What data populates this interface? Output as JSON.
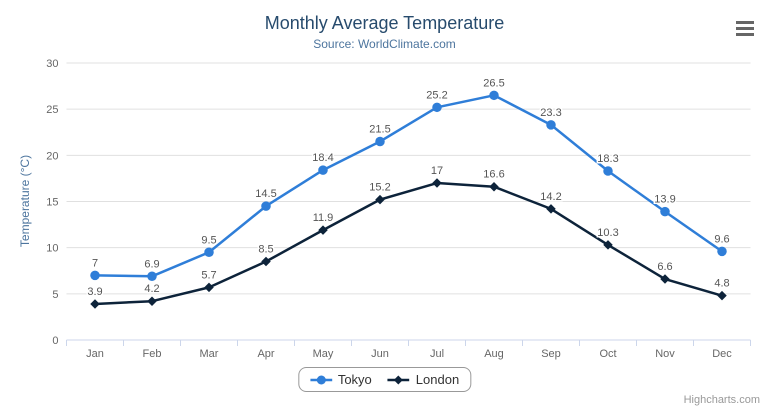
{
  "chart_data": {
    "type": "line",
    "title": "Monthly Average Temperature",
    "subtitle": "Source: WorldClimate.com",
    "categories": [
      "Jan",
      "Feb",
      "Mar",
      "Apr",
      "May",
      "Jun",
      "Jul",
      "Aug",
      "Sep",
      "Oct",
      "Nov",
      "Dec"
    ],
    "series": [
      {
        "name": "Tokyo",
        "color": "#2f7ed8",
        "marker": "circle",
        "values": [
          7,
          6.9,
          9.5,
          14.5,
          18.4,
          21.5,
          25.2,
          26.5,
          23.3,
          18.3,
          13.9,
          9.6
        ]
      },
      {
        "name": "London",
        "color": "#0d233a",
        "marker": "diamond",
        "values": [
          3.9,
          4.2,
          5.7,
          8.5,
          11.9,
          15.2,
          17,
          16.6,
          14.2,
          10.3,
          6.6,
          4.8
        ]
      }
    ],
    "xlabel": "",
    "ylabel": "Temperature (°C)",
    "ylim": [
      0,
      30
    ],
    "yticks": [
      0,
      5,
      10,
      15,
      20,
      25,
      30
    ],
    "grid": true,
    "data_labels": true,
    "legend_position": "bottom-center"
  },
  "legend": {
    "items": [
      "Tokyo",
      "London"
    ]
  },
  "credits": {
    "label": "Highcharts.com"
  },
  "icons": {
    "context_menu": "hamburger-menu-icon"
  },
  "colors": {
    "background": "#ffffff",
    "title": "#274b6d",
    "subtitle": "#4d759e",
    "axis_title": "#4d759e",
    "axis_labels": "#666666",
    "data_labels": "#555555",
    "gridline": "#e0e0e0",
    "axis_line": "#ccd6eb",
    "legend_border": "#999999",
    "credits": "#999999"
  }
}
